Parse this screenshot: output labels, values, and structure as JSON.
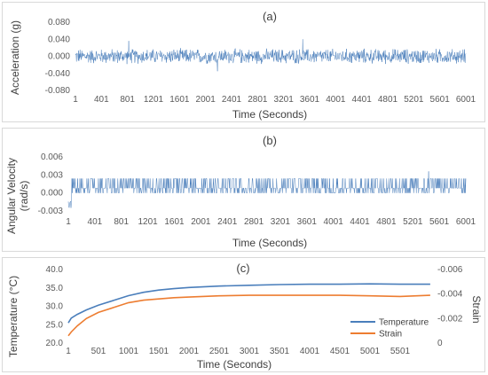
{
  "chart_data": [
    {
      "type": "line",
      "title": "(a)",
      "xlabel": "Time (Seconds)",
      "ylabel": "Acceleration (g)",
      "ylim": [
        -0.08,
        0.08
      ],
      "yticks": [
        "0.080",
        "0.040",
        "0.000",
        "-0.040",
        "-0.080"
      ],
      "xticks": [
        "1",
        "401",
        "801",
        "1201",
        "1601",
        "2001",
        "2401",
        "2801",
        "3201",
        "3601",
        "4001",
        "4401",
        "4801",
        "5201",
        "5601",
        "6001"
      ],
      "xlim": [
        1,
        6001
      ],
      "series": [
        {
          "color": "#4a7ebb",
          "noise_amplitude": 0.02,
          "peak": 0.04,
          "trough": -0.035,
          "mean": 0.0
        }
      ],
      "grid": false
    },
    {
      "type": "line",
      "title": "(b)",
      "xlabel": "Time (Seconds)",
      "ylabel": "Angular Velocity (rad/s)",
      "ylim": [
        -0.003,
        0.006
      ],
      "yticks": [
        "0.006",
        "0.003",
        "0.000",
        "-0.003"
      ],
      "xticks": [
        "1",
        "401",
        "801",
        "1201",
        "1601",
        "2001",
        "2401",
        "2801",
        "3201",
        "3601",
        "4001",
        "4401",
        "4801",
        "5201",
        "5601",
        "6001"
      ],
      "xlim": [
        1,
        6001
      ],
      "series": [
        {
          "color": "#4a7ebb",
          "levels": [
            0.0,
            0.0008,
            0.0024
          ],
          "initial_dip": -0.0025,
          "peak": 0.0036
        }
      ],
      "grid": false
    },
    {
      "type": "line",
      "title": "(c)",
      "xlabel": "Time (Seconds)",
      "ylabel": "Temperature (°C)",
      "y2label": "Strain",
      "ylim": [
        20.0,
        40.0
      ],
      "yticks": [
        "40.0",
        "35.0",
        "30.0",
        "25.0",
        "20.0"
      ],
      "y2lim": [
        0,
        -0.006
      ],
      "y2ticks": [
        "-0.006",
        "-0.004",
        "-0.002",
        "0"
      ],
      "xticks": [
        "1",
        "501",
        "1001",
        "1501",
        "2001",
        "2501",
        "3001",
        "3501",
        "4001",
        "4501",
        "5001",
        "5501"
      ],
      "xlim": [
        1,
        6001
      ],
      "legend_position": "right",
      "series": [
        {
          "name": "Temperature",
          "axis": "left",
          "color": "#4a7ebb",
          "x": [
            1,
            50,
            150,
            300,
            500,
            750,
            1000,
            1250,
            1500,
            1750,
            2000,
            2500,
            3000,
            3500,
            4000,
            4500,
            5000,
            5500,
            6000
          ],
          "y": [
            25.5,
            26.8,
            27.8,
            29.0,
            30.3,
            31.6,
            32.9,
            33.8,
            34.4,
            34.8,
            35.1,
            35.5,
            35.7,
            35.9,
            36.0,
            36.0,
            36.1,
            36.0,
            36.0
          ]
        },
        {
          "name": "Strain",
          "axis": "right",
          "color": "#ed7d31",
          "x": [
            1,
            50,
            150,
            300,
            500,
            750,
            1000,
            1250,
            1500,
            1750,
            2000,
            2500,
            3000,
            3500,
            4000,
            4500,
            5000,
            5500,
            6000
          ],
          "y": [
            -0.0006,
            -0.0009,
            -0.0014,
            -0.002,
            -0.0025,
            -0.0029,
            -0.0033,
            -0.0035,
            -0.0036,
            -0.0037,
            -0.00375,
            -0.00385,
            -0.0039,
            -0.0039,
            -0.0039,
            -0.0039,
            -0.00385,
            -0.0038,
            -0.0039
          ]
        }
      ],
      "grid": false
    }
  ]
}
